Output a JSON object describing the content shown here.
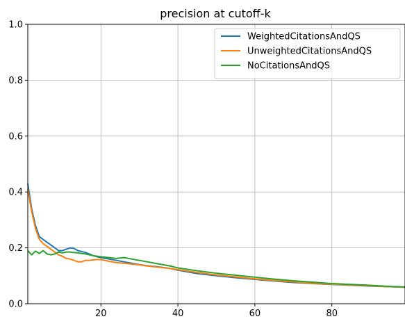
{
  "chart_data": {
    "type": "line",
    "title": "precision at cutoff-k",
    "xlabel": "",
    "ylabel": "",
    "xlim": [
      1,
      99
    ],
    "ylim": [
      0.0,
      1.0
    ],
    "xticks": [
      20,
      40,
      60,
      80
    ],
    "yticks": [
      0.0,
      0.2,
      0.4,
      0.6,
      0.8,
      1.0
    ],
    "xtick_labels": [
      "20",
      "40",
      "60",
      "80"
    ],
    "ytick_labels": [
      "0.0",
      "0.2",
      "0.4",
      "0.6",
      "0.8",
      "1.0"
    ],
    "grid": true,
    "legend_position": "top-right",
    "series": [
      {
        "name": "WeightedCitationsAndQS",
        "color": "#1f77b4",
        "x": [
          1,
          2,
          3,
          4,
          5,
          6,
          7,
          8,
          9,
          10,
          11,
          12,
          13,
          14,
          15,
          16,
          17,
          18,
          19,
          20,
          22,
          24,
          26,
          28,
          30,
          32,
          34,
          36,
          38,
          40,
          45,
          50,
          55,
          60,
          65,
          70,
          75,
          80,
          85,
          90,
          95,
          99
        ],
        "y": [
          0.43,
          0.34,
          0.28,
          0.24,
          0.23,
          0.22,
          0.21,
          0.2,
          0.19,
          0.19,
          0.195,
          0.2,
          0.198,
          0.19,
          0.187,
          0.183,
          0.178,
          0.172,
          0.168,
          0.165,
          0.16,
          0.155,
          0.15,
          0.145,
          0.14,
          0.136,
          0.133,
          0.13,
          0.126,
          0.12,
          0.108,
          0.1,
          0.093,
          0.087,
          0.081,
          0.076,
          0.072,
          0.069,
          0.066,
          0.063,
          0.061,
          0.059
        ]
      },
      {
        "name": "UnweightedCitationsAndQS",
        "color": "#ff7f0e",
        "x": [
          1,
          2,
          3,
          4,
          5,
          6,
          7,
          8,
          9,
          10,
          11,
          12,
          13,
          14,
          15,
          16,
          17,
          18,
          19,
          20,
          22,
          24,
          26,
          28,
          30,
          32,
          34,
          36,
          38,
          40,
          45,
          50,
          55,
          60,
          65,
          70,
          75,
          80,
          85,
          90,
          95,
          99
        ],
        "y": [
          0.41,
          0.33,
          0.27,
          0.23,
          0.215,
          0.205,
          0.195,
          0.185,
          0.175,
          0.17,
          0.162,
          0.16,
          0.155,
          0.15,
          0.15,
          0.155,
          0.155,
          0.157,
          0.158,
          0.158,
          0.152,
          0.147,
          0.145,
          0.142,
          0.139,
          0.135,
          0.132,
          0.129,
          0.126,
          0.122,
          0.112,
          0.103,
          0.096,
          0.089,
          0.083,
          0.078,
          0.073,
          0.07,
          0.067,
          0.064,
          0.061,
          0.059
        ]
      },
      {
        "name": "NoCitationsAndQS",
        "color": "#2ca02c",
        "x": [
          1,
          2,
          3,
          4,
          5,
          6,
          7,
          8,
          9,
          10,
          11,
          12,
          13,
          14,
          15,
          16,
          17,
          18,
          19,
          20,
          22,
          24,
          26,
          28,
          30,
          32,
          34,
          36,
          38,
          40,
          45,
          50,
          55,
          60,
          65,
          70,
          75,
          80,
          85,
          90,
          95,
          99
        ],
        "y": [
          0.19,
          0.175,
          0.188,
          0.18,
          0.19,
          0.178,
          0.175,
          0.178,
          0.185,
          0.182,
          0.185,
          0.185,
          0.183,
          0.182,
          0.18,
          0.178,
          0.175,
          0.172,
          0.17,
          0.168,
          0.165,
          0.162,
          0.165,
          0.16,
          0.155,
          0.15,
          0.145,
          0.14,
          0.135,
          0.128,
          0.118,
          0.109,
          0.102,
          0.095,
          0.088,
          0.082,
          0.077,
          0.072,
          0.069,
          0.066,
          0.062,
          0.06
        ]
      }
    ]
  }
}
